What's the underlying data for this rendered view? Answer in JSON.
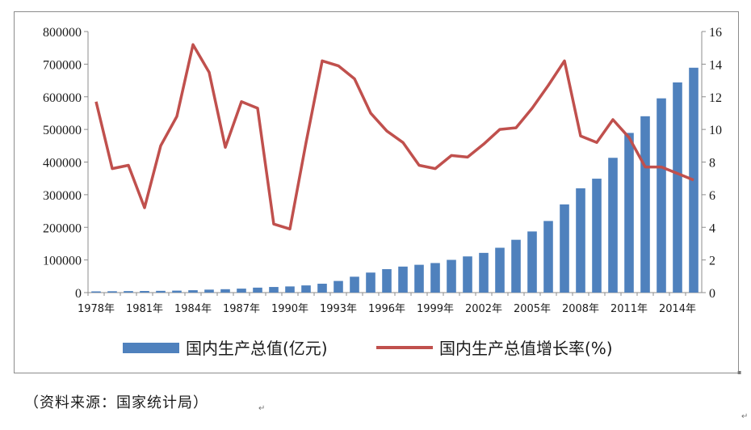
{
  "chart_data": {
    "type": "bar+line",
    "title": "",
    "xlabel": "",
    "ylabel_left": "",
    "ylabel_right": "",
    "categories": [
      "1978年",
      "1979年",
      "1980年",
      "1981年",
      "1982年",
      "1983年",
      "1984年",
      "1985年",
      "1986年",
      "1987年",
      "1988年",
      "1989年",
      "1990年",
      "1991年",
      "1992年",
      "1993年",
      "1994年",
      "1995年",
      "1996年",
      "1997年",
      "1998年",
      "1999年",
      "2000年",
      "2001年",
      "2002年",
      "2003年",
      "2004年",
      "2005年",
      "2006年",
      "2007年",
      "2008年",
      "2009年",
      "2010年",
      "2011年",
      "2012年",
      "2013年",
      "2014年",
      "2015年"
    ],
    "x_tick_labels": [
      "1978年",
      "1981年",
      "1984年",
      "1987年",
      "1990年",
      "1993年",
      "1996年",
      "1999年",
      "2002年",
      "2005年",
      "2008年",
      "2011年",
      "2014年"
    ],
    "ylim_left": [
      0,
      800000
    ],
    "yticks_left": [
      "0",
      "100000",
      "200000",
      "300000",
      "400000",
      "500000",
      "600000",
      "700000",
      "800000"
    ],
    "ylim_right": [
      0,
      16
    ],
    "yticks_right": [
      "0",
      "2",
      "4",
      "6",
      "8",
      "10",
      "12",
      "14",
      "16"
    ],
    "legend_position": "bottom",
    "grid": false,
    "series": [
      {
        "name": "国内生产总值(亿元)",
        "type": "bar",
        "axis": "left",
        "color": "#4f81bd",
        "values": [
          3679,
          4100,
          4588,
          4936,
          5373,
          6021,
          7279,
          9099,
          10376,
          12175,
          15180,
          17180,
          18873,
          22006,
          27195,
          35673,
          48638,
          61340,
          71814,
          79715,
          85196,
          90564,
          100280,
          110863,
          121717,
          137422,
          161840,
          187319,
          219439,
          270232,
          319516,
          349081,
          413030,
          489301,
          540367,
          595244,
          643974,
          689052
        ]
      },
      {
        "name": "国内生产总值增长率(%)",
        "type": "line",
        "axis": "right",
        "color": "#c0504d",
        "values": [
          11.7,
          7.6,
          7.8,
          5.2,
          9.0,
          10.8,
          15.2,
          13.5,
          8.9,
          11.7,
          11.3,
          4.2,
          3.9,
          9.2,
          14.2,
          13.9,
          13.1,
          11.0,
          9.9,
          9.2,
          7.8,
          7.6,
          8.4,
          8.3,
          9.1,
          10.0,
          10.1,
          11.3,
          12.7,
          14.2,
          9.6,
          9.2,
          10.6,
          9.5,
          7.7,
          7.7,
          7.3,
          6.9
        ]
      }
    ]
  },
  "source_note": "（资料来源：国家统计局）",
  "marks": {
    "para": "↵",
    "dot": "▪"
  }
}
